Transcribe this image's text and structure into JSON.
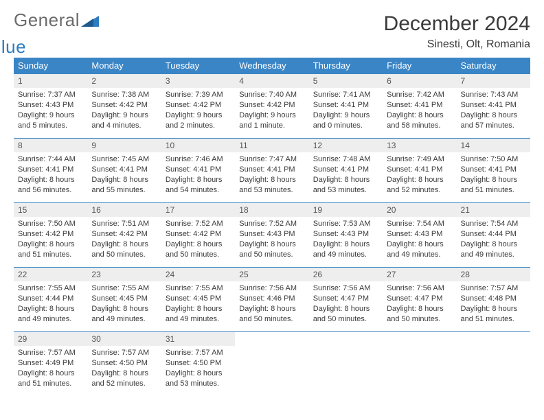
{
  "brand": {
    "part1": "General",
    "part2": "Blue"
  },
  "title": "December 2024",
  "location": "Sinesti, Olt, Romania",
  "colors": {
    "header_bg": "#3a85c6",
    "daynum_bg": "#eeeeee",
    "text": "#3a3a3a",
    "logo_gray": "#6b6b6b",
    "logo_blue": "#2d7cc1"
  },
  "dows": [
    "Sunday",
    "Monday",
    "Tuesday",
    "Wednesday",
    "Thursday",
    "Friday",
    "Saturday"
  ],
  "weeks": [
    {
      "nums": [
        "1",
        "2",
        "3",
        "4",
        "5",
        "6",
        "7"
      ],
      "cells": [
        {
          "sunrise": "Sunrise: 7:37 AM",
          "sunset": "Sunset: 4:43 PM",
          "dl1": "Daylight: 9 hours",
          "dl2": "and 5 minutes."
        },
        {
          "sunrise": "Sunrise: 7:38 AM",
          "sunset": "Sunset: 4:42 PM",
          "dl1": "Daylight: 9 hours",
          "dl2": "and 4 minutes."
        },
        {
          "sunrise": "Sunrise: 7:39 AM",
          "sunset": "Sunset: 4:42 PM",
          "dl1": "Daylight: 9 hours",
          "dl2": "and 2 minutes."
        },
        {
          "sunrise": "Sunrise: 7:40 AM",
          "sunset": "Sunset: 4:42 PM",
          "dl1": "Daylight: 9 hours",
          "dl2": "and 1 minute."
        },
        {
          "sunrise": "Sunrise: 7:41 AM",
          "sunset": "Sunset: 4:41 PM",
          "dl1": "Daylight: 9 hours",
          "dl2": "and 0 minutes."
        },
        {
          "sunrise": "Sunrise: 7:42 AM",
          "sunset": "Sunset: 4:41 PM",
          "dl1": "Daylight: 8 hours",
          "dl2": "and 58 minutes."
        },
        {
          "sunrise": "Sunrise: 7:43 AM",
          "sunset": "Sunset: 4:41 PM",
          "dl1": "Daylight: 8 hours",
          "dl2": "and 57 minutes."
        }
      ]
    },
    {
      "nums": [
        "8",
        "9",
        "10",
        "11",
        "12",
        "13",
        "14"
      ],
      "cells": [
        {
          "sunrise": "Sunrise: 7:44 AM",
          "sunset": "Sunset: 4:41 PM",
          "dl1": "Daylight: 8 hours",
          "dl2": "and 56 minutes."
        },
        {
          "sunrise": "Sunrise: 7:45 AM",
          "sunset": "Sunset: 4:41 PM",
          "dl1": "Daylight: 8 hours",
          "dl2": "and 55 minutes."
        },
        {
          "sunrise": "Sunrise: 7:46 AM",
          "sunset": "Sunset: 4:41 PM",
          "dl1": "Daylight: 8 hours",
          "dl2": "and 54 minutes."
        },
        {
          "sunrise": "Sunrise: 7:47 AM",
          "sunset": "Sunset: 4:41 PM",
          "dl1": "Daylight: 8 hours",
          "dl2": "and 53 minutes."
        },
        {
          "sunrise": "Sunrise: 7:48 AM",
          "sunset": "Sunset: 4:41 PM",
          "dl1": "Daylight: 8 hours",
          "dl2": "and 53 minutes."
        },
        {
          "sunrise": "Sunrise: 7:49 AM",
          "sunset": "Sunset: 4:41 PM",
          "dl1": "Daylight: 8 hours",
          "dl2": "and 52 minutes."
        },
        {
          "sunrise": "Sunrise: 7:50 AM",
          "sunset": "Sunset: 4:41 PM",
          "dl1": "Daylight: 8 hours",
          "dl2": "and 51 minutes."
        }
      ]
    },
    {
      "nums": [
        "15",
        "16",
        "17",
        "18",
        "19",
        "20",
        "21"
      ],
      "cells": [
        {
          "sunrise": "Sunrise: 7:50 AM",
          "sunset": "Sunset: 4:42 PM",
          "dl1": "Daylight: 8 hours",
          "dl2": "and 51 minutes."
        },
        {
          "sunrise": "Sunrise: 7:51 AM",
          "sunset": "Sunset: 4:42 PM",
          "dl1": "Daylight: 8 hours",
          "dl2": "and 50 minutes."
        },
        {
          "sunrise": "Sunrise: 7:52 AM",
          "sunset": "Sunset: 4:42 PM",
          "dl1": "Daylight: 8 hours",
          "dl2": "and 50 minutes."
        },
        {
          "sunrise": "Sunrise: 7:52 AM",
          "sunset": "Sunset: 4:43 PM",
          "dl1": "Daylight: 8 hours",
          "dl2": "and 50 minutes."
        },
        {
          "sunrise": "Sunrise: 7:53 AM",
          "sunset": "Sunset: 4:43 PM",
          "dl1": "Daylight: 8 hours",
          "dl2": "and 49 minutes."
        },
        {
          "sunrise": "Sunrise: 7:54 AM",
          "sunset": "Sunset: 4:43 PM",
          "dl1": "Daylight: 8 hours",
          "dl2": "and 49 minutes."
        },
        {
          "sunrise": "Sunrise: 7:54 AM",
          "sunset": "Sunset: 4:44 PM",
          "dl1": "Daylight: 8 hours",
          "dl2": "and 49 minutes."
        }
      ]
    },
    {
      "nums": [
        "22",
        "23",
        "24",
        "25",
        "26",
        "27",
        "28"
      ],
      "cells": [
        {
          "sunrise": "Sunrise: 7:55 AM",
          "sunset": "Sunset: 4:44 PM",
          "dl1": "Daylight: 8 hours",
          "dl2": "and 49 minutes."
        },
        {
          "sunrise": "Sunrise: 7:55 AM",
          "sunset": "Sunset: 4:45 PM",
          "dl1": "Daylight: 8 hours",
          "dl2": "and 49 minutes."
        },
        {
          "sunrise": "Sunrise: 7:55 AM",
          "sunset": "Sunset: 4:45 PM",
          "dl1": "Daylight: 8 hours",
          "dl2": "and 49 minutes."
        },
        {
          "sunrise": "Sunrise: 7:56 AM",
          "sunset": "Sunset: 4:46 PM",
          "dl1": "Daylight: 8 hours",
          "dl2": "and 50 minutes."
        },
        {
          "sunrise": "Sunrise: 7:56 AM",
          "sunset": "Sunset: 4:47 PM",
          "dl1": "Daylight: 8 hours",
          "dl2": "and 50 minutes."
        },
        {
          "sunrise": "Sunrise: 7:56 AM",
          "sunset": "Sunset: 4:47 PM",
          "dl1": "Daylight: 8 hours",
          "dl2": "and 50 minutes."
        },
        {
          "sunrise": "Sunrise: 7:57 AM",
          "sunset": "Sunset: 4:48 PM",
          "dl1": "Daylight: 8 hours",
          "dl2": "and 51 minutes."
        }
      ]
    },
    {
      "nums": [
        "29",
        "30",
        "31",
        "",
        "",
        "",
        ""
      ],
      "cells": [
        {
          "sunrise": "Sunrise: 7:57 AM",
          "sunset": "Sunset: 4:49 PM",
          "dl1": "Daylight: 8 hours",
          "dl2": "and 51 minutes."
        },
        {
          "sunrise": "Sunrise: 7:57 AM",
          "sunset": "Sunset: 4:50 PM",
          "dl1": "Daylight: 8 hours",
          "dl2": "and 52 minutes."
        },
        {
          "sunrise": "Sunrise: 7:57 AM",
          "sunset": "Sunset: 4:50 PM",
          "dl1": "Daylight: 8 hours",
          "dl2": "and 53 minutes."
        },
        {
          "sunrise": "",
          "sunset": "",
          "dl1": "",
          "dl2": ""
        },
        {
          "sunrise": "",
          "sunset": "",
          "dl1": "",
          "dl2": ""
        },
        {
          "sunrise": "",
          "sunset": "",
          "dl1": "",
          "dl2": ""
        },
        {
          "sunrise": "",
          "sunset": "",
          "dl1": "",
          "dl2": ""
        }
      ]
    }
  ]
}
